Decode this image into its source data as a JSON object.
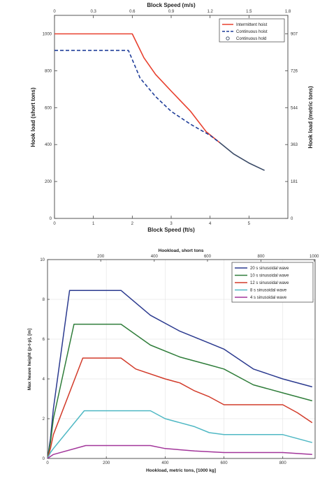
{
  "chart_data": [
    {
      "type": "line",
      "title": "",
      "xlabel": "Block Speed (ft/s)",
      "ylabel": "Hook load (short tons)",
      "x2label": "Block Speed (m/s)",
      "y2label": "Hook load (metric tons)",
      "xlim": [
        0,
        6
      ],
      "ylim": [
        0,
        1100
      ],
      "x2lim": [
        0,
        1.8
      ],
      "xticks": [
        "0",
        "1",
        "2",
        "3",
        "4",
        "5"
      ],
      "yticks": [
        "0",
        "200",
        "400",
        "600",
        "800",
        "1000"
      ],
      "x2ticks": [
        "0",
        "0.3",
        "0.6",
        "0.9",
        "1.2",
        "1.5",
        "1.8"
      ],
      "y2ticks": [
        {
          "label": "0",
          "at": 0
        },
        {
          "label": "181",
          "at": 200
        },
        {
          "label": "363",
          "at": 400
        },
        {
          "label": "544",
          "at": 600
        },
        {
          "label": "726",
          "at": 800
        },
        {
          "label": "907",
          "at": 1000
        }
      ],
      "grid": false,
      "legend_position": "top-right",
      "series": [
        {
          "name": "Intermittent hoist",
          "color": "#e8402e",
          "dash": "solid",
          "x": [
            0,
            2.0,
            2.3,
            2.6,
            3.0,
            3.5,
            3.9,
            4.25
          ],
          "y": [
            1000,
            1000,
            870,
            780,
            690,
            580,
            470,
            410
          ]
        },
        {
          "name": "Continuous hoist",
          "color": "#1f3d99",
          "dash": "dashed",
          "x": [
            0,
            1.9,
            2.2,
            2.6,
            3.0,
            3.5,
            4.0,
            4.25
          ],
          "y": [
            910,
            910,
            760,
            660,
            580,
            510,
            450,
            410
          ]
        },
        {
          "name": "Continuous hold",
          "color": "#3a4a66",
          "dash": "solid",
          "marker": "circle",
          "x": [
            4.25,
            4.6,
            5.0,
            5.4
          ],
          "y": [
            410,
            350,
            300,
            260
          ]
        }
      ]
    },
    {
      "type": "line",
      "title": "",
      "xlabel": "Hookload, metric tons, [1000 kg]",
      "ylabel": "Max heave height (p-t-p), [m]",
      "x2label": "Hookload, short tons",
      "xlim": [
        0,
        910
      ],
      "ylim": [
        0,
        10
      ],
      "xticks": [
        "0",
        "200",
        "400",
        "600",
        "800"
      ],
      "yticks": [
        "0",
        "2",
        "4",
        "6",
        "8",
        "10"
      ],
      "x2ticks": [
        {
          "label": "200",
          "at": 181
        },
        {
          "label": "400",
          "at": 363
        },
        {
          "label": "600",
          "at": 544
        },
        {
          "label": "800",
          "at": 726
        },
        {
          "label": "1000",
          "at": 907
        }
      ],
      "grid": true,
      "legend_position": "top-right",
      "series": [
        {
          "name": "20 s sinusoidal wave",
          "color": "#2b3a8f",
          "x": [
            0,
            10,
            20,
            75,
            250,
            350,
            450,
            550,
            600,
            700,
            800,
            900
          ],
          "y": [
            0,
            1,
            2.5,
            8.45,
            8.45,
            7.2,
            6.4,
            5.8,
            5.5,
            4.5,
            4.0,
            3.6
          ]
        },
        {
          "name": "10 s sinusoidal wave",
          "color": "#2f7d3a",
          "x": [
            0,
            10,
            20,
            90,
            250,
            350,
            450,
            550,
            600,
            700,
            800,
            900
          ],
          "y": [
            0,
            0.8,
            2.0,
            6.75,
            6.75,
            5.7,
            5.1,
            4.7,
            4.5,
            3.7,
            3.3,
            2.9
          ]
        },
        {
          "name": "12 s sinusoidal wave",
          "color": "#d23b2a",
          "x": [
            0,
            10,
            20,
            120,
            250,
            300,
            400,
            450,
            500,
            550,
            600,
            700,
            800,
            850,
            900
          ],
          "y": [
            0,
            0.5,
            1.2,
            5.05,
            5.05,
            4.5,
            4.0,
            3.8,
            3.4,
            3.1,
            2.7,
            2.7,
            2.7,
            2.3,
            1.8
          ]
        },
        {
          "name": "8 s sinusoidal wave",
          "color": "#4fb8c4",
          "x": [
            0,
            10,
            20,
            125,
            350,
            400,
            500,
            550,
            600,
            700,
            800,
            900
          ],
          "y": [
            0,
            0.3,
            0.5,
            2.4,
            2.4,
            2.0,
            1.6,
            1.3,
            1.2,
            1.2,
            1.2,
            0.8
          ]
        },
        {
          "name": "4 s sinusoidal wave",
          "color": "#a2359a",
          "x": [
            0,
            10,
            20,
            130,
            350,
            400,
            500,
            600,
            700,
            800,
            900
          ],
          "y": [
            0,
            0.1,
            0.2,
            0.65,
            0.65,
            0.5,
            0.38,
            0.3,
            0.3,
            0.3,
            0.2
          ]
        }
      ]
    }
  ]
}
